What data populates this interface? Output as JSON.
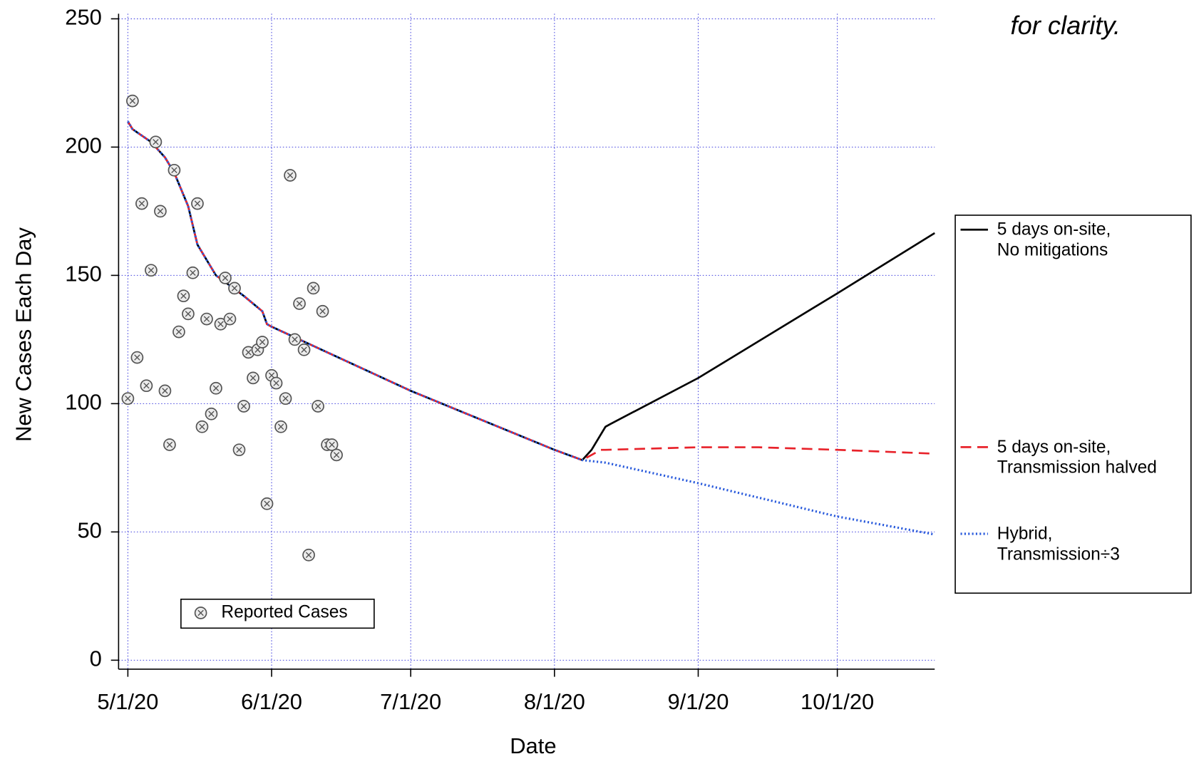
{
  "chart_data": {
    "type": "line",
    "annotation": "for clarity.",
    "x_label": "Date",
    "y_label": "New Cases Each Day",
    "xlim": [
      "2020-04-29",
      "2020-10-22"
    ],
    "ylim": [
      -3.5,
      252
    ],
    "xticks": [
      {
        "value": "2020-05-01",
        "label": "5/1/20"
      },
      {
        "value": "2020-06-01",
        "label": "6/1/20"
      },
      {
        "value": "2020-07-01",
        "label": "7/1/20"
      },
      {
        "value": "2020-08-01",
        "label": "8/1/20"
      },
      {
        "value": "2020-09-01",
        "label": "9/1/20"
      },
      {
        "value": "2020-10-01",
        "label": "10/1/20"
      }
    ],
    "yticks": [
      0,
      50,
      100,
      150,
      200,
      250
    ],
    "grid": true,
    "scatter": {
      "name": "Reported Cases",
      "color": "#555555",
      "x": [
        "2020-05-01",
        "2020-05-02",
        "2020-05-03",
        "2020-05-04",
        "2020-05-05",
        "2020-05-06",
        "2020-05-07",
        "2020-05-08",
        "2020-05-09",
        "2020-05-10",
        "2020-05-11",
        "2020-05-12",
        "2020-05-13",
        "2020-05-14",
        "2020-05-15",
        "2020-05-16",
        "2020-05-17",
        "2020-05-18",
        "2020-05-19",
        "2020-05-20",
        "2020-05-21",
        "2020-05-22",
        "2020-05-23",
        "2020-05-24",
        "2020-05-25",
        "2020-05-26",
        "2020-05-27",
        "2020-05-28",
        "2020-05-29",
        "2020-05-30",
        "2020-05-31",
        "2020-06-01",
        "2020-06-02",
        "2020-06-03",
        "2020-06-04",
        "2020-06-05",
        "2020-06-06",
        "2020-06-07",
        "2020-06-08",
        "2020-06-09",
        "2020-06-10",
        "2020-06-11",
        "2020-06-12",
        "2020-06-13",
        "2020-06-14",
        "2020-06-15"
      ],
      "values": [
        102,
        218,
        118,
        178,
        107,
        152,
        202,
        175,
        105,
        84,
        191,
        128,
        142,
        135,
        151,
        178,
        91,
        133,
        96,
        106,
        131,
        149,
        133,
        145,
        82,
        99,
        120,
        110,
        121,
        124,
        61,
        111,
        108,
        91,
        102,
        189,
        125,
        139,
        121,
        41,
        145,
        99,
        136,
        84,
        84,
        80
      ]
    },
    "series": [
      {
        "name": "5 days on-site,\nNo mitigations",
        "color": "#000000",
        "dash": "solid",
        "x": [
          "2020-05-01",
          "2020-05-02",
          "2020-05-06",
          "2020-05-09",
          "2020-05-11",
          "2020-05-14",
          "2020-05-16",
          "2020-05-20",
          "2020-05-26",
          "2020-05-30",
          "2020-05-31",
          "2020-06-01",
          "2020-07-01",
          "2020-08-01",
          "2020-08-07",
          "2020-08-09",
          "2020-08-12",
          "2020-08-13",
          "2020-09-01",
          "2020-10-01",
          "2020-10-22"
        ],
        "values": [
          210,
          207,
          202,
          196,
          190,
          177,
          162,
          150,
          142,
          136,
          131,
          130,
          105,
          82,
          78,
          82,
          91,
          92,
          110,
          143,
          166.5
        ]
      },
      {
        "name": "5 days on-site,\nTransmission halved",
        "color": "#e8222a",
        "dash": "dashed",
        "x": [
          "2020-05-01",
          "2020-05-02",
          "2020-05-06",
          "2020-05-09",
          "2020-05-11",
          "2020-05-14",
          "2020-05-16",
          "2020-05-20",
          "2020-05-26",
          "2020-05-30",
          "2020-05-31",
          "2020-06-01",
          "2020-07-01",
          "2020-08-01",
          "2020-08-07",
          "2020-08-11",
          "2020-08-12",
          "2020-09-01",
          "2020-09-14",
          "2020-10-01",
          "2020-10-22"
        ],
        "values": [
          210,
          207,
          202,
          196,
          190,
          177,
          162,
          150,
          142,
          136,
          131,
          130,
          105,
          82,
          78,
          82,
          82,
          83,
          83,
          82,
          80.5
        ]
      },
      {
        "name": "Hybrid,\nTransmission÷3",
        "color": "#2a5bdc",
        "dash": "dotted",
        "x": [
          "2020-05-01",
          "2020-05-02",
          "2020-05-06",
          "2020-05-09",
          "2020-05-11",
          "2020-05-14",
          "2020-05-16",
          "2020-05-20",
          "2020-05-26",
          "2020-05-30",
          "2020-05-31",
          "2020-06-01",
          "2020-07-01",
          "2020-08-01",
          "2020-08-07",
          "2020-08-12",
          "2020-09-01",
          "2020-10-01",
          "2020-10-22"
        ],
        "values": [
          210,
          207,
          202,
          196,
          190,
          177,
          162,
          150,
          142,
          136,
          131,
          130,
          105,
          82,
          78,
          77,
          69,
          56,
          49
        ]
      }
    ]
  }
}
